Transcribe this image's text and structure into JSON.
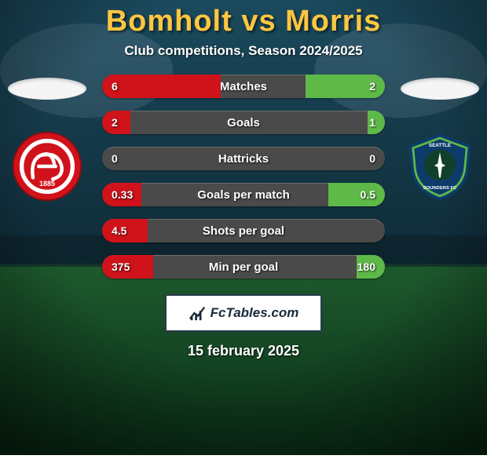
{
  "background": {
    "sky_top": "#1b4a5e",
    "sky_bottom": "#0e2a36",
    "grass_top": "#1e5a2e",
    "grass_bottom": "#0a3017",
    "horizon_y": 0.58
  },
  "title": {
    "text": "Bomholt vs Morris",
    "color": "#ffc640",
    "fontsize": 38
  },
  "subtitle": {
    "text": "Club competitions, Season 2024/2025",
    "fontsize": 17
  },
  "left_team": {
    "crest_bg": "#d0121a",
    "crest_inner": "#ffffff",
    "crest_stroke": "#8a0c12",
    "monogram": "AaB",
    "year": "1885"
  },
  "right_team": {
    "crest_bg": "#0d3c6b",
    "crest_ring": "#5eb948",
    "crest_inner": "#113f2a",
    "text_top": "SEATTLE",
    "text_bottom": "SOUNDERS FC"
  },
  "bars": {
    "track_color": "#4a4a4a",
    "left_color": "#d0121a",
    "right_color": "#5eb948",
    "label_color": "#ffffff",
    "items": [
      {
        "label": "Matches",
        "left_val": "6",
        "right_val": "2",
        "left_pct": 42,
        "right_pct": 28
      },
      {
        "label": "Goals",
        "left_val": "2",
        "right_val": "1",
        "left_pct": 10,
        "right_pct": 6
      },
      {
        "label": "Hattricks",
        "left_val": "0",
        "right_val": "0",
        "left_pct": 0,
        "right_pct": 0
      },
      {
        "label": "Goals per match",
        "left_val": "0.33",
        "right_val": "0.5",
        "left_pct": 14,
        "right_pct": 20
      },
      {
        "label": "Shots per goal",
        "left_val": "4.5",
        "right_val": "",
        "left_pct": 16,
        "right_pct": 0
      },
      {
        "label": "Min per goal",
        "left_val": "375",
        "right_val": "180",
        "left_pct": 18,
        "right_pct": 10
      }
    ]
  },
  "brand": "FcTables.com",
  "date": "15 february 2025"
}
